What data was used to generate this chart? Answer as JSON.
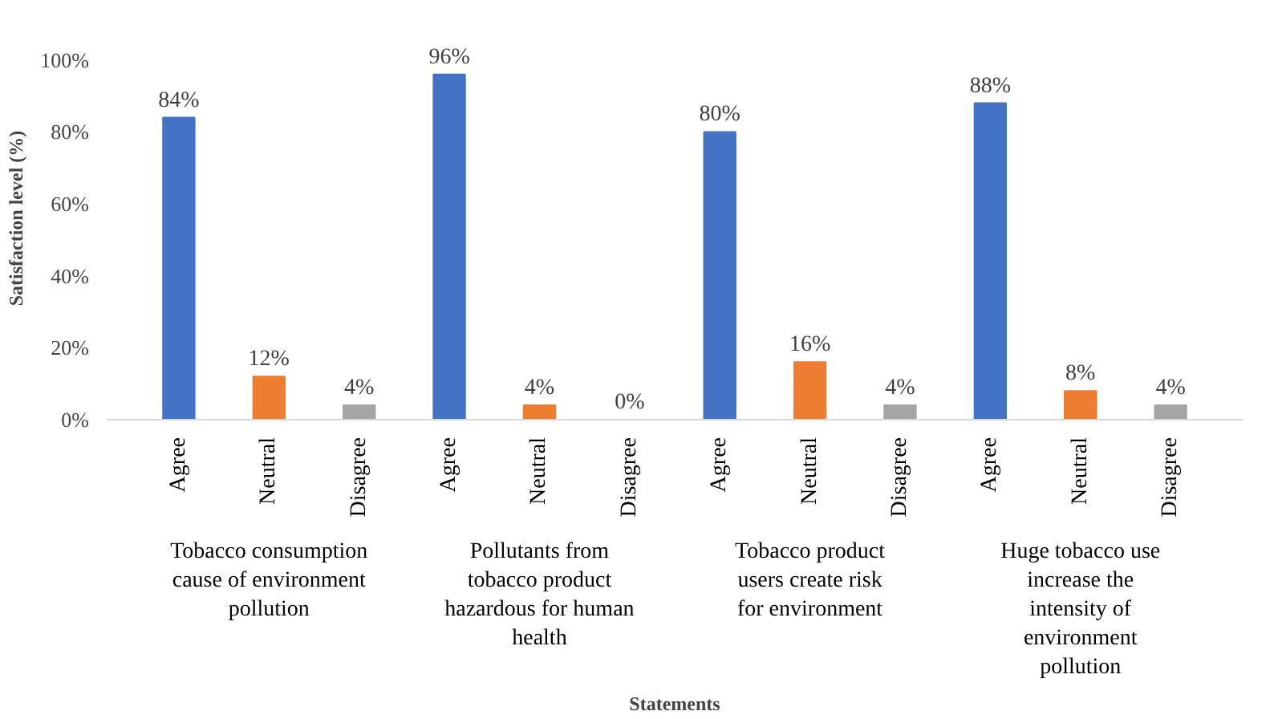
{
  "chart_data": {
    "type": "bar",
    "xlabel": "Statements",
    "ylabel": "Satisfaction level (%)",
    "categories": [
      "Tobacco consumption cause of environment pollution",
      "Pollutants from tobacco product hazardous for human health",
      "Tobacco product users create risk for environment",
      "Huge tobacco use increase the intensity of environment pollution"
    ],
    "series": [
      {
        "name": "Agree",
        "color": "#4472c4",
        "values": [
          84,
          96,
          80,
          88
        ],
        "value_labels": [
          "84%",
          "96%",
          "80%",
          "88%"
        ]
      },
      {
        "name": "Neutral",
        "color": "#ed7d31",
        "values": [
          12,
          4,
          16,
          8
        ],
        "value_labels": [
          "12%",
          "4%",
          "16%",
          "8%"
        ]
      },
      {
        "name": "Disagree",
        "color": "#a5a5a5",
        "values": [
          4,
          0,
          4,
          4
        ],
        "value_labels": [
          "4%",
          "0%",
          "4%",
          "4%"
        ]
      }
    ],
    "ylim": [
      0,
      100
    ],
    "yticks": [
      {
        "value": 0,
        "label": "0%"
      },
      {
        "value": 20,
        "label": "20%"
      },
      {
        "value": 40,
        "label": "40%"
      },
      {
        "value": 60,
        "label": "60%"
      },
      {
        "value": 80,
        "label": "80%"
      },
      {
        "value": 100,
        "label": "100%"
      }
    ],
    "grid": false
  }
}
